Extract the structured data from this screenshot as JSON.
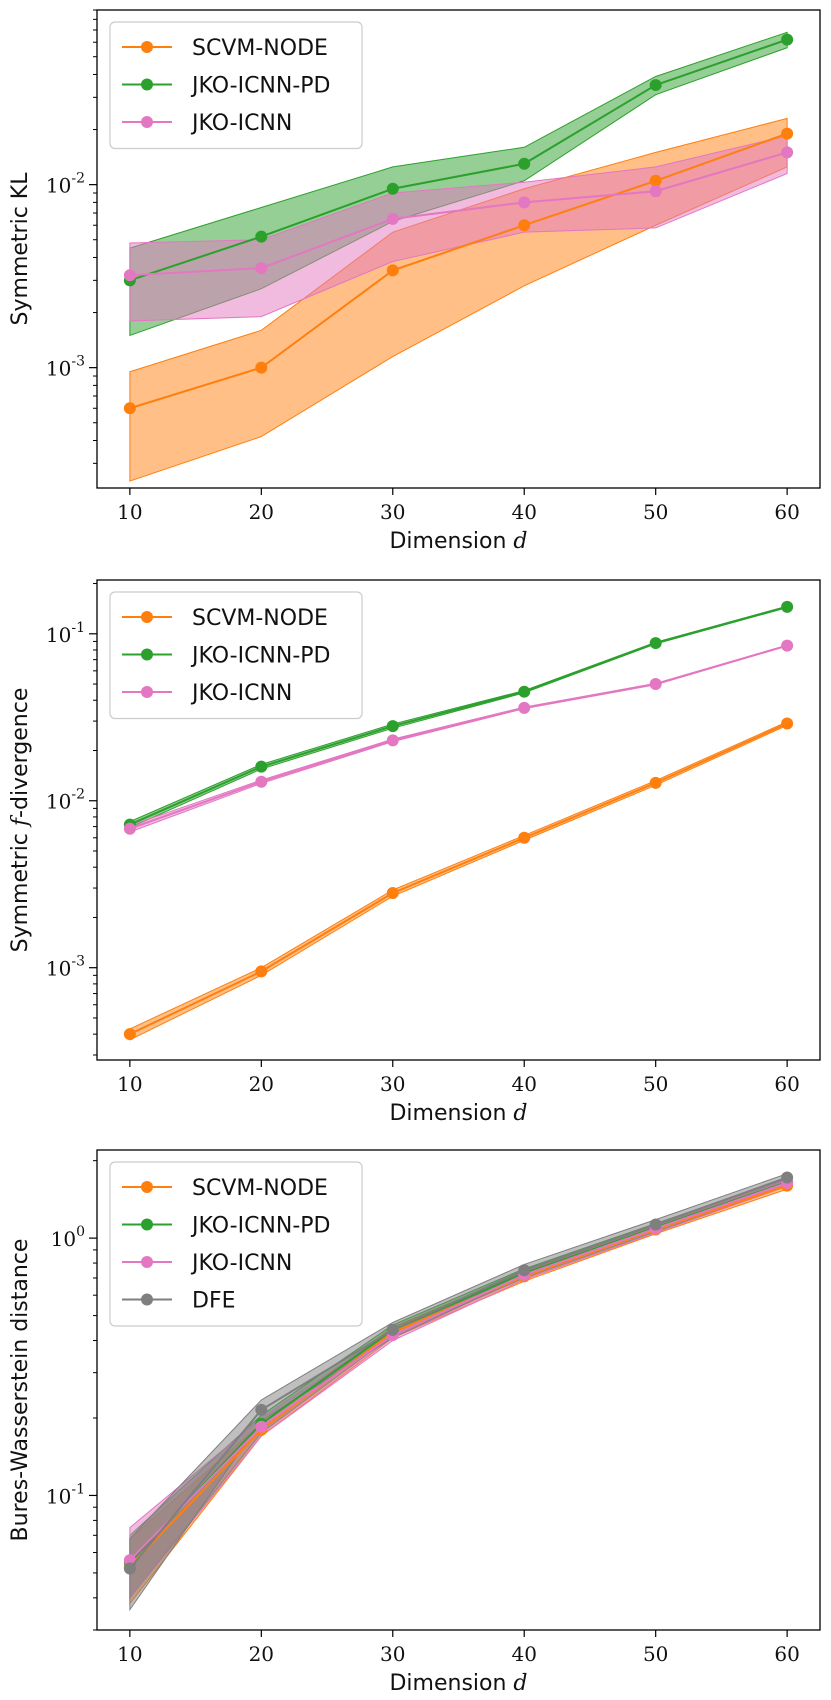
{
  "chart_data": [
    {
      "type": "line",
      "title": "",
      "xlabel": "Dimension",
      "xlabel_var": "d",
      "ylabel": "Symmetric KL",
      "ylabel_var": "",
      "ylabel_suffix": "",
      "yscale": "log",
      "xlim": [
        7.5,
        62.5
      ],
      "ylim": [
        0.00022,
        0.09
      ],
      "x": [
        10,
        20,
        30,
        40,
        50,
        60
      ],
      "x_ticks": [
        "10",
        "20",
        "30",
        "40",
        "50",
        "60"
      ],
      "y_ticks": [
        {
          "value": 0.001,
          "exp": "-3"
        },
        {
          "value": 0.01,
          "exp": "-2"
        }
      ],
      "legend": "top-left",
      "grid": false,
      "series": [
        {
          "name": "SCVM-NODE",
          "color": "#ff7f0e",
          "values": [
            0.0006,
            0.001,
            0.0034,
            0.006,
            0.0105,
            0.019
          ],
          "lower": [
            0.00024,
            0.00042,
            0.00115,
            0.0028,
            0.006,
            0.0125
          ],
          "upper": [
            0.00095,
            0.0016,
            0.0055,
            0.0095,
            0.015,
            0.023
          ]
        },
        {
          "name": "JKO-ICNN-PD",
          "color": "#2ca02c",
          "values": [
            0.003,
            0.0052,
            0.0095,
            0.013,
            0.035,
            0.062
          ],
          "lower": [
            0.0015,
            0.0027,
            0.0063,
            0.0105,
            0.031,
            0.056
          ],
          "upper": [
            0.0045,
            0.0075,
            0.0125,
            0.016,
            0.039,
            0.068
          ]
        },
        {
          "name": "JKO-ICNN",
          "color": "#e377c2",
          "values": [
            0.0032,
            0.0035,
            0.0065,
            0.008,
            0.0092,
            0.015
          ],
          "lower": [
            0.0018,
            0.0019,
            0.0038,
            0.0055,
            0.0058,
            0.0115
          ],
          "upper": [
            0.0048,
            0.005,
            0.009,
            0.0103,
            0.0125,
            0.0185
          ]
        }
      ]
    },
    {
      "type": "line",
      "title": "",
      "xlabel": "Dimension",
      "xlabel_var": "d",
      "ylabel": "Symmetric",
      "ylabel_var": "f",
      "ylabel_suffix": "-divergence",
      "yscale": "log",
      "xlim": [
        7.5,
        62.5
      ],
      "ylim": [
        0.00028,
        0.21
      ],
      "x": [
        10,
        20,
        30,
        40,
        50,
        60
      ],
      "x_ticks": [
        "10",
        "20",
        "30",
        "40",
        "50",
        "60"
      ],
      "y_ticks": [
        {
          "value": 0.001,
          "exp": "-3"
        },
        {
          "value": 0.01,
          "exp": "-2"
        },
        {
          "value": 0.1,
          "exp": "-1"
        }
      ],
      "legend": "top-left",
      "grid": false,
      "series": [
        {
          "name": "SCVM-NODE",
          "color": "#ff7f0e",
          "values": [
            0.0004,
            0.00095,
            0.0028,
            0.006,
            0.0128,
            0.029
          ],
          "lower": [
            0.00037,
            0.0009,
            0.00268,
            0.0058,
            0.0124,
            0.0283
          ],
          "upper": [
            0.00043,
            0.001,
            0.00292,
            0.0062,
            0.0132,
            0.0297
          ]
        },
        {
          "name": "JKO-ICNN-PD",
          "color": "#2ca02c",
          "values": [
            0.0072,
            0.016,
            0.028,
            0.045,
            0.088,
            0.145
          ],
          "lower": [
            0.0069,
            0.0155,
            0.0272,
            0.0443,
            0.087,
            0.1435
          ],
          "upper": [
            0.0075,
            0.0165,
            0.0288,
            0.0457,
            0.089,
            0.1465
          ]
        },
        {
          "name": "JKO-ICNN",
          "color": "#e377c2",
          "values": [
            0.0068,
            0.013,
            0.023,
            0.036,
            0.05,
            0.085
          ],
          "lower": [
            0.0065,
            0.0127,
            0.0226,
            0.0356,
            0.0495,
            0.0845
          ],
          "upper": [
            0.0071,
            0.0133,
            0.0234,
            0.0364,
            0.0505,
            0.0855
          ]
        }
      ]
    },
    {
      "type": "line",
      "title": "",
      "xlabel": "Dimension",
      "xlabel_var": "d",
      "ylabel": "Bures-Wasserstein distance",
      "ylabel_var": "",
      "ylabel_suffix": "",
      "yscale": "log",
      "xlim": [
        7.5,
        62.5
      ],
      "ylim": [
        0.03,
        2.2
      ],
      "x": [
        10,
        20,
        30,
        40,
        50,
        60
      ],
      "x_ticks": [
        "10",
        "20",
        "30",
        "40",
        "50",
        "60"
      ],
      "y_ticks": [
        {
          "value": 0.1,
          "exp": "-1"
        },
        {
          "value": 1,
          "exp": "0"
        }
      ],
      "legend": "top-left",
      "grid": false,
      "series": [
        {
          "name": "SCVM-NODE",
          "color": "#ff7f0e",
          "values": [
            0.053,
            0.18,
            0.43,
            0.71,
            1.08,
            1.6
          ],
          "lower": [
            0.038,
            0.17,
            0.41,
            0.68,
            1.04,
            1.55
          ],
          "upper": [
            0.068,
            0.19,
            0.45,
            0.74,
            1.12,
            1.66
          ]
        },
        {
          "name": "JKO-ICNN-PD",
          "color": "#2ca02c",
          "values": [
            0.055,
            0.19,
            0.44,
            0.73,
            1.1,
            1.65
          ],
          "lower": [
            0.04,
            0.175,
            0.42,
            0.7,
            1.06,
            1.6
          ],
          "upper": [
            0.07,
            0.205,
            0.46,
            0.76,
            1.14,
            1.7
          ]
        },
        {
          "name": "JKO-ICNN",
          "color": "#e377c2",
          "values": [
            0.056,
            0.185,
            0.42,
            0.72,
            1.09,
            1.64
          ],
          "lower": [
            0.04,
            0.17,
            0.4,
            0.69,
            1.05,
            1.59
          ],
          "upper": [
            0.075,
            0.2,
            0.44,
            0.75,
            1.13,
            1.69
          ]
        },
        {
          "name": "DFE",
          "color": "#7f7f7f",
          "values": [
            0.052,
            0.215,
            0.44,
            0.75,
            1.13,
            1.72
          ],
          "lower": [
            0.036,
            0.195,
            0.41,
            0.71,
            1.08,
            1.66
          ],
          "upper": [
            0.068,
            0.235,
            0.47,
            0.79,
            1.18,
            1.78
          ]
        }
      ]
    }
  ]
}
